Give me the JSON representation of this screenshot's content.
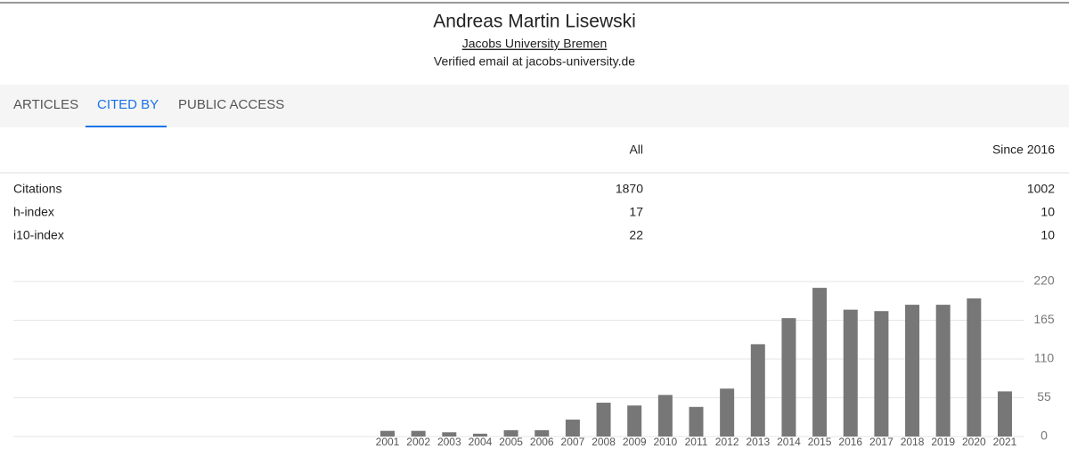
{
  "header": {
    "name": "Andreas Martin Lisewski",
    "affiliation": "Jacobs University Bremen",
    "email": "Verified email at jacobs-university.de"
  },
  "tabs": [
    "ARTICLES",
    "CITED BY",
    "PUBLIC ACCESS"
  ],
  "table": {
    "columns": [
      "All",
      "Since 2016"
    ],
    "rows": [
      [
        "Citations",
        1870,
        1002
      ],
      [
        "h-index",
        17,
        10
      ],
      [
        "i10-index",
        22,
        10
      ]
    ]
  },
  "chart_data": {
    "type": "bar",
    "categories": [
      "2001",
      "2002",
      "2003",
      "2004",
      "2005",
      "2006",
      "2007",
      "2008",
      "2009",
      "2010",
      "2011",
      "2012",
      "2013",
      "2014",
      "2015",
      "2016",
      "2017",
      "2018",
      "2019",
      "2020",
      "2021"
    ],
    "values": [
      8,
      8,
      6,
      4,
      9,
      9,
      24,
      48,
      44,
      59,
      42,
      68,
      131,
      168,
      211,
      180,
      178,
      187,
      187,
      196,
      64
    ],
    "color": "#777777",
    "ylim": [
      0,
      220
    ],
    "yticks": [
      0,
      55,
      110,
      165,
      220
    ],
    "grid": true
  }
}
